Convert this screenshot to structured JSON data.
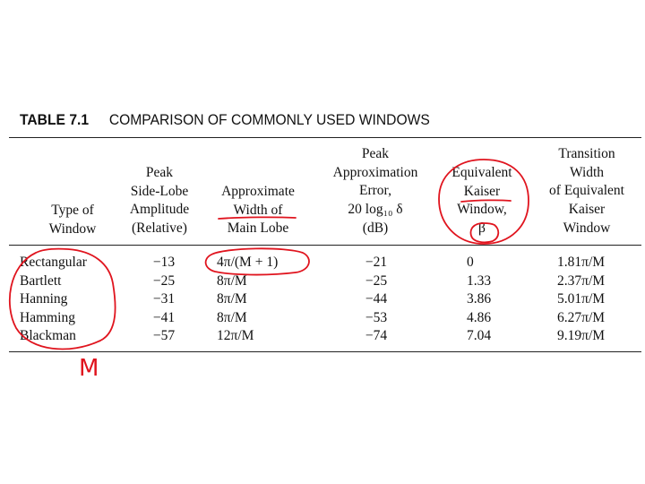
{
  "title": {
    "label": "TABLE 7.1",
    "text": "COMPARISON OF COMMONLY USED WINDOWS"
  },
  "headers": {
    "type": [
      "Type of",
      "Window"
    ],
    "peak": [
      "Peak",
      "Side-Lobe",
      "Amplitude",
      "(Relative)"
    ],
    "width": [
      "Approximate",
      "Width of",
      "Main Lobe"
    ],
    "error": [
      "Peak",
      "Approximation",
      "Error,",
      "20 log₁₀ δ",
      "(dB)"
    ],
    "kaiser": [
      "Equivalent",
      "Kaiser",
      "Window,",
      "β"
    ],
    "transition": [
      "Transition",
      "Width",
      "of Equivalent",
      "Kaiser",
      "Window"
    ]
  },
  "rows": [
    {
      "name": "Rectangular",
      "peak": "−13",
      "width": "4π/(M + 1)",
      "error": "−21",
      "beta": "0",
      "transition": "1.81π/M"
    },
    {
      "name": "Bartlett",
      "peak": "−25",
      "width": "8π/M",
      "error": "−25",
      "beta": "1.33",
      "transition": "2.37π/M"
    },
    {
      "name": "Hanning",
      "peak": "−31",
      "width": "8π/M",
      "error": "−44",
      "beta": "3.86",
      "transition": "5.01π/M"
    },
    {
      "name": "Hamming",
      "peak": "−41",
      "width": "8π/M",
      "error": "−53",
      "beta": "4.86",
      "transition": "6.27π/M"
    },
    {
      "name": "Blackman",
      "peak": "−57",
      "width": "12π/M",
      "error": "−74",
      "beta": "7.04",
      "transition": "9.19π/M"
    }
  ],
  "annotation": {
    "text": "M",
    "color": "#e0141e"
  }
}
